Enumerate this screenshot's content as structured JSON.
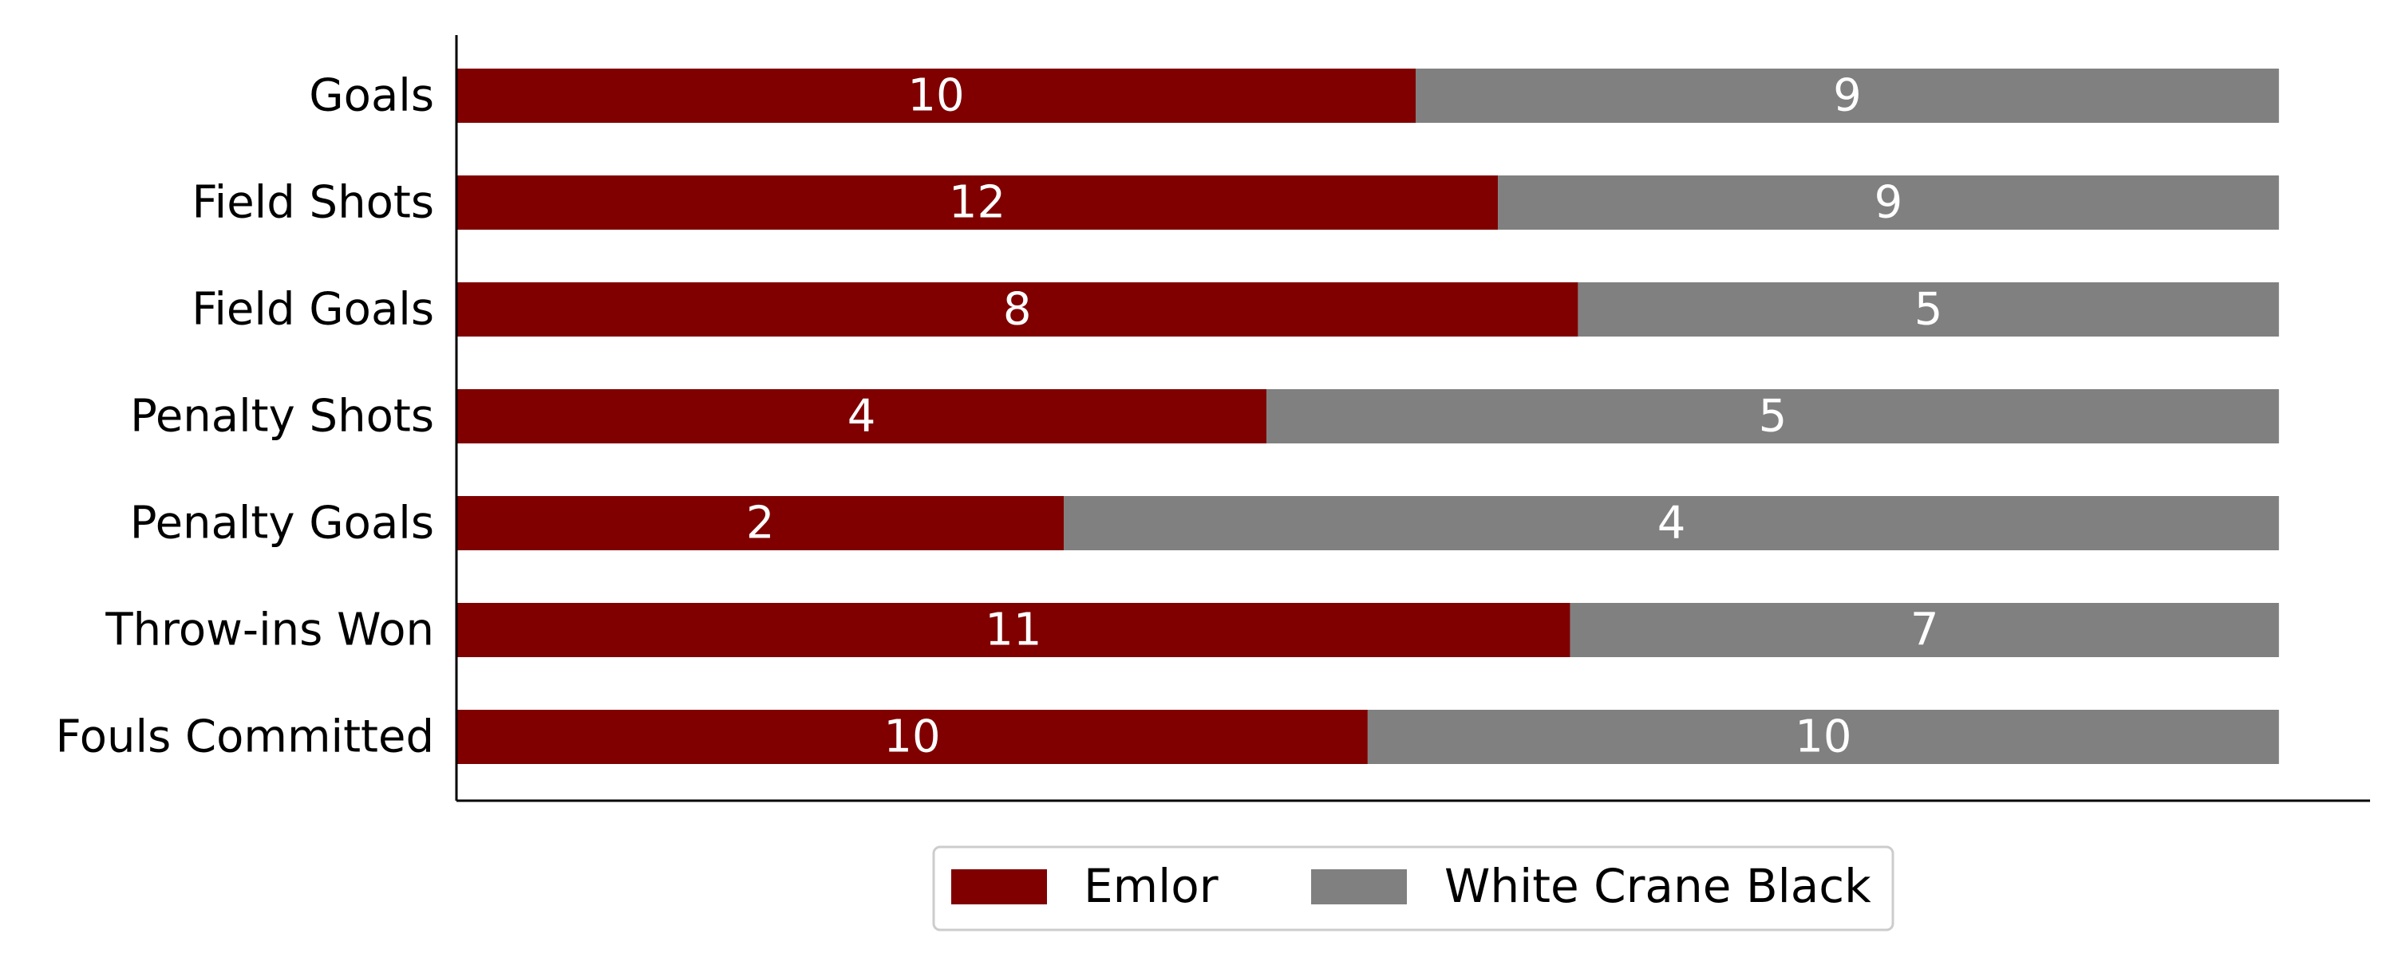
{
  "chart_data": {
    "type": "bar",
    "orientation": "horizontal",
    "stacked": true,
    "normalized": true,
    "categories": [
      "Goals",
      "Field Shots",
      "Field Goals",
      "Penalty Shots",
      "Penalty Goals",
      "Throw-ins Won",
      "Fouls Committed"
    ],
    "series": [
      {
        "name": "Emlor",
        "values": [
          10,
          12,
          8,
          4,
          2,
          11,
          10
        ],
        "color": "#800000"
      },
      {
        "name": "White Crane Black",
        "values": [
          9,
          9,
          5,
          5,
          4,
          7,
          10
        ],
        "color": "#808080"
      }
    ],
    "title": "",
    "xlabel": "",
    "ylabel": "",
    "xlim": [
      0,
      1.05
    ],
    "grid": false,
    "legend_position": "bottom-center"
  }
}
